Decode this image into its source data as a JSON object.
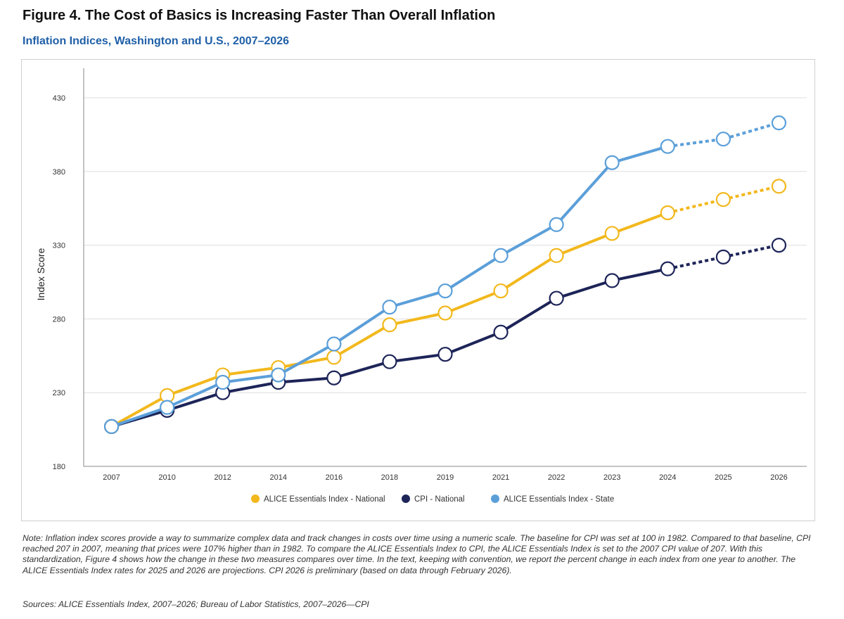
{
  "figure": {
    "title": "Figure 4. The Cost of Basics is Increasing Faster Than Overall Inflation",
    "subtitle": "Inflation Indices, Washington and U.S., 2007–2026",
    "note": "Note: Inflation index scores provide a way to summarize complex data and track changes in costs over time using a numeric scale. The baseline for CPI was set at 100 in 1982. Compared to that baseline, CPI reached 207 in 2007, meaning that prices were 107% higher than in 1982. To compare the ALICE Essentials Index to CPI, the ALICE Essentials Index is set to the 2007 CPI value of 207. With this standardization, Figure 4 shows how the change in these two measures compares over time. In the text, keeping with convention, we report the percent change in each index from one year to another. The ALICE Essentials Index rates for 2025 and 2026 are projections. CPI 2026 is preliminary (based on data through February 2026).",
    "sources": "Sources: ALICE Essentials Index, 2007–2026; Bureau of Labor Statistics, 2007–2026—CPI"
  },
  "chart_data": {
    "type": "line",
    "ylabel": "Index Score",
    "xlabel": "",
    "ylim": [
      180,
      430
    ],
    "yticks": [
      180,
      230,
      280,
      330,
      380,
      430
    ],
    "categories": [
      "2007",
      "2010",
      "2012",
      "2014",
      "2016",
      "2018",
      "2019",
      "2021",
      "2022",
      "2023",
      "2024",
      "2025",
      "2026"
    ],
    "projection_start": "2024",
    "grid": "horizontal",
    "legend_position": "bottom",
    "series": [
      {
        "name": "ALICE Essentials Index - National",
        "color": "#f2b81d",
        "values": [
          207,
          228,
          242,
          247,
          254,
          276,
          284,
          299,
          323,
          338,
          352,
          361,
          370
        ]
      },
      {
        "name": "CPI - National",
        "color": "#1d2458",
        "values": [
          207,
          218,
          230,
          237,
          240,
          251,
          256,
          271,
          294,
          306,
          314,
          322,
          330
        ]
      },
      {
        "name": "ALICE Essentials Index - State",
        "color": "#5b9fd9",
        "values": [
          207,
          220,
          237,
          242,
          263,
          288,
          299,
          323,
          344,
          386,
          397,
          402,
          413
        ]
      }
    ]
  }
}
